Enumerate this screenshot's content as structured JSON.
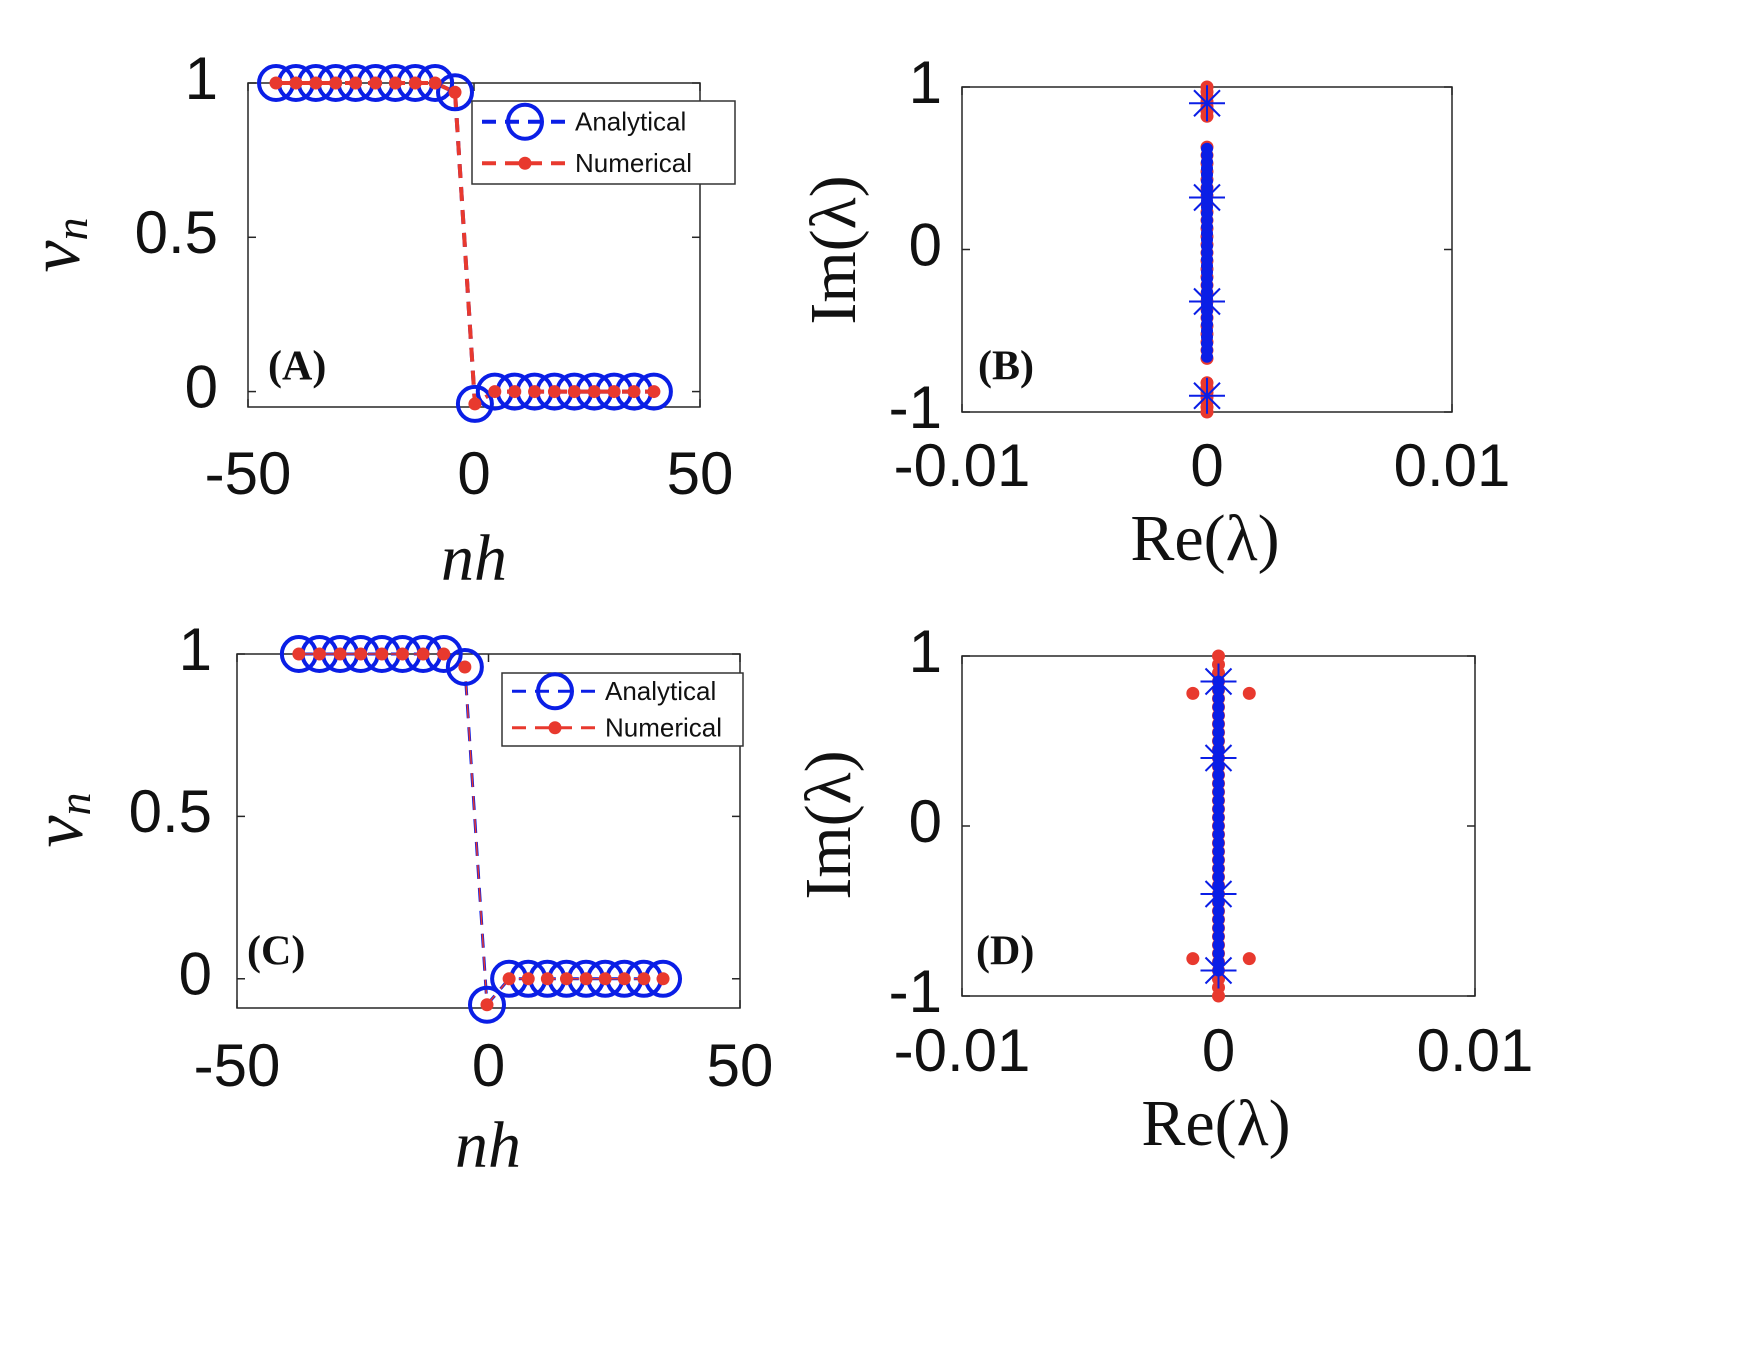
{
  "chart_data": [
    {
      "type": "line",
      "panel_label": "(A)",
      "xlabel": "nh",
      "ylabel": {
        "base": "v",
        "sub": "n"
      },
      "xlim": [
        -50,
        50
      ],
      "ylim": [
        -0.05,
        1
      ],
      "xticks": [
        -50,
        0,
        50
      ],
      "yticks": [
        0,
        0.5,
        1
      ],
      "legend": "northeast",
      "x": [
        -43.8,
        -39.4,
        -35,
        -30.6,
        -26.2,
        -21.8,
        -17.4,
        -13,
        -8.6,
        -4.2,
        0.2,
        4.6,
        9,
        13.4,
        17.8,
        22.2,
        26.6,
        31,
        35.4,
        39.8
      ],
      "series": [
        {
          "name": "Analytical",
          "color": "#0a1ee6",
          "marker": "circle",
          "linewidth": 4,
          "values": [
            1,
            1,
            1,
            1,
            1,
            1,
            1,
            1,
            1,
            0.97,
            -0.04,
            0,
            0,
            0,
            0,
            0,
            0,
            0,
            0,
            0
          ]
        },
        {
          "name": "Numerical",
          "color": "#e8392e",
          "marker": "dot",
          "linewidth": 4,
          "values": [
            1,
            1,
            1,
            1,
            1,
            1,
            1,
            1,
            1,
            0.97,
            -0.04,
            0,
            0,
            0,
            0,
            0,
            0,
            0,
            0,
            0
          ]
        }
      ]
    },
    {
      "type": "scatter",
      "panel_label": "(B)",
      "xlabel": "Re(λ)",
      "ylabel": "Im(λ)",
      "xlim": [
        -0.01,
        0.01
      ],
      "ylim": [
        -1,
        1
      ],
      "xticks": [
        -0.01,
        0,
        0.01
      ],
      "yticks": [
        -1,
        0,
        1
      ],
      "series": [
        {
          "color": "#e8392e",
          "marker": "dot",
          "x": [
            0,
            0,
            0,
            0,
            0,
            0,
            0,
            0,
            0,
            0,
            0,
            0,
            0,
            0,
            0,
            0,
            0,
            0,
            0,
            0,
            0,
            0,
            0,
            0,
            0,
            0,
            0,
            0,
            0,
            0,
            0,
            0,
            0,
            0,
            0,
            0,
            0,
            0,
            0,
            0,
            0
          ],
          "values": [
            -1,
            -0.97,
            -0.94,
            -0.91,
            -0.88,
            -0.85,
            -0.82,
            -0.67,
            -0.62,
            -0.57,
            -0.52,
            -0.47,
            -0.42,
            -0.37,
            -0.32,
            -0.27,
            -0.22,
            -0.17,
            -0.12,
            -0.07,
            -0.02,
            0.03,
            0.08,
            0.13,
            0.18,
            0.23,
            0.28,
            0.33,
            0.38,
            0.43,
            0.48,
            0.53,
            0.58,
            0.63,
            0.82,
            0.85,
            0.88,
            0.91,
            0.94,
            0.97,
            1
          ]
        },
        {
          "color": "#0a1ee6",
          "marker": "smalldot",
          "x": [
            0,
            0,
            0,
            0,
            0,
            0,
            0,
            0,
            0,
            0,
            0,
            0,
            0,
            0,
            0,
            0,
            0,
            0,
            0,
            0,
            0,
            0,
            0,
            0,
            0,
            0,
            0,
            0,
            0,
            0,
            0,
            0,
            0
          ],
          "values": [
            -0.66,
            -0.62,
            -0.58,
            -0.54,
            -0.5,
            -0.46,
            -0.42,
            -0.38,
            -0.34,
            -0.3,
            -0.26,
            -0.22,
            -0.18,
            -0.14,
            -0.1,
            -0.06,
            -0.02,
            0.02,
            0.06,
            0.1,
            0.14,
            0.18,
            0.22,
            0.26,
            0.3,
            0.34,
            0.38,
            0.42,
            0.46,
            0.5,
            0.54,
            0.58,
            0.62
          ]
        },
        {
          "color": "#0a1ee6",
          "marker": "star",
          "x": [
            0,
            0,
            0,
            0
          ],
          "values": [
            -0.9,
            -0.32,
            0.32,
            0.9
          ]
        }
      ]
    },
    {
      "type": "line",
      "panel_label": "(C)",
      "xlabel": "nh",
      "ylabel": {
        "base": "v",
        "sub": "n"
      },
      "xlim": [
        -50,
        50
      ],
      "ylim": [
        -0.09,
        1
      ],
      "xticks": [
        -50,
        0,
        50
      ],
      "yticks": [
        0,
        0.5,
        1
      ],
      "legend": "northeast",
      "x": [
        -37.7,
        -33.6,
        -29.5,
        -25.4,
        -21.2,
        -17.1,
        -13,
        -8.9,
        -4.7,
        -0.3,
        4.1,
        7.9,
        11.7,
        15.5,
        19.4,
        23.2,
        27,
        30.9,
        34.7
      ],
      "series": [
        {
          "name": "Analytical",
          "color": "#0a1ee6",
          "marker": "circle",
          "linewidth": 3,
          "values": [
            1,
            1,
            1,
            1,
            1,
            1,
            1,
            1,
            0.96,
            -0.08,
            0,
            0,
            0,
            0,
            0,
            0,
            0,
            0,
            0
          ]
        },
        {
          "name": "Numerical",
          "color": "#e8392e",
          "marker": "dot",
          "linewidth": 1.5,
          "values": [
            1,
            1,
            1,
            1,
            1,
            1,
            1,
            1,
            0.96,
            -0.08,
            0,
            0,
            0,
            0,
            0,
            0,
            0,
            0,
            0
          ]
        }
      ]
    },
    {
      "type": "scatter",
      "panel_label": "(D)",
      "xlabel": "Re(λ)",
      "ylabel": "Im(λ)",
      "xlim": [
        -0.01,
        0.01
      ],
      "ylim": [
        -1,
        1
      ],
      "xticks": [
        -0.01,
        0,
        0.01
      ],
      "yticks": [
        -1,
        0,
        1
      ],
      "series": [
        {
          "color": "#e8392e",
          "marker": "dot",
          "x": [
            0,
            0,
            0,
            0,
            0,
            0,
            0,
            0,
            0,
            0,
            0,
            0,
            0,
            0,
            0,
            0,
            0,
            0,
            0,
            0,
            0,
            0,
            0,
            0,
            0,
            0,
            0,
            0,
            0,
            0,
            0,
            0,
            0,
            0,
            0,
            0,
            0,
            0,
            0,
            0,
            0,
            -0.001,
            0.0012,
            -0.001,
            0.0012
          ],
          "values": [
            -1,
            -0.95,
            -0.9,
            -0.85,
            -0.8,
            -0.75,
            -0.7,
            -0.65,
            -0.6,
            -0.55,
            -0.5,
            -0.45,
            -0.4,
            -0.35,
            -0.3,
            -0.25,
            -0.2,
            -0.15,
            -0.1,
            -0.05,
            0,
            0.05,
            0.1,
            0.15,
            0.2,
            0.25,
            0.3,
            0.35,
            0.4,
            0.45,
            0.5,
            0.55,
            0.6,
            0.65,
            0.7,
            0.75,
            0.8,
            0.85,
            0.9,
            0.95,
            1,
            0.78,
            0.78,
            -0.78,
            -0.78
          ]
        },
        {
          "color": "#0a1ee6",
          "marker": "smalldot",
          "x": [
            0,
            0,
            0,
            0,
            0,
            0,
            0,
            0,
            0,
            0,
            0,
            0,
            0,
            0,
            0,
            0,
            0,
            0,
            0,
            0,
            0,
            0,
            0,
            0,
            0,
            0,
            0,
            0,
            0,
            0,
            0,
            0,
            0,
            0,
            0
          ],
          "values": [
            -0.85,
            -0.8,
            -0.75,
            -0.7,
            -0.65,
            -0.6,
            -0.55,
            -0.5,
            -0.45,
            -0.4,
            -0.35,
            -0.3,
            -0.25,
            -0.2,
            -0.15,
            -0.1,
            -0.05,
            0,
            0.05,
            0.1,
            0.15,
            0.2,
            0.25,
            0.3,
            0.35,
            0.4,
            0.45,
            0.5,
            0.55,
            0.6,
            0.65,
            0.7,
            0.75,
            0.8,
            0.85
          ]
        },
        {
          "color": "#0a1ee6",
          "marker": "star",
          "x": [
            0,
            0,
            0,
            0
          ],
          "values": [
            -0.85,
            -0.4,
            0.4,
            0.85
          ]
        }
      ]
    }
  ]
}
